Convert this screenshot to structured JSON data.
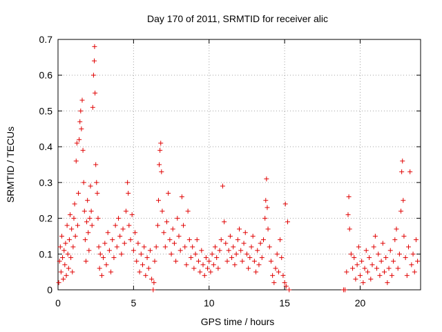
{
  "chart_data": {
    "type": "scatter",
    "title": "Day 170 of 2011, SRMTID for receiver alic",
    "xlabel": "GPS time / hours",
    "ylabel": "SRMTID / TECUs",
    "xlim": [
      0,
      24
    ],
    "ylim": [
      0,
      0.7
    ],
    "xticks": [
      0,
      5,
      10,
      15,
      20
    ],
    "yticks": [
      0,
      0.1,
      0.2,
      0.3,
      0.4,
      0.5,
      0.6,
      0.7
    ],
    "grid": true,
    "marker": "+",
    "color": "#e00000",
    "series": [
      {
        "name": "SRMTID",
        "points": [
          [
            0.05,
            0.02
          ],
          [
            0.1,
            0.08
          ],
          [
            0.15,
            0.12
          ],
          [
            0.2,
            0.05
          ],
          [
            0.25,
            0.15
          ],
          [
            0.3,
            0.09
          ],
          [
            0.35,
            0.03
          ],
          [
            0.4,
            0.11
          ],
          [
            0.45,
            0.07
          ],
          [
            0.5,
            0.13
          ],
          [
            0.55,
            0.04
          ],
          [
            0.6,
            0.18
          ],
          [
            0.65,
            0.1
          ],
          [
            0.7,
            0.06
          ],
          [
            0.75,
            0.14
          ],
          [
            0.8,
            0.21
          ],
          [
            0.85,
            0.09
          ],
          [
            0.9,
            0.17
          ],
          [
            0.95,
            0.05
          ],
          [
            1.0,
            0.12
          ],
          [
            1.05,
            0.2
          ],
          [
            1.1,
            0.24
          ],
          [
            1.15,
            0.15
          ],
          [
            1.2,
            0.36
          ],
          [
            1.25,
            0.41
          ],
          [
            1.3,
            0.18
          ],
          [
            1.35,
            0.27
          ],
          [
            1.4,
            0.42
          ],
          [
            1.45,
            0.47
          ],
          [
            1.5,
            0.5
          ],
          [
            1.55,
            0.45
          ],
          [
            1.6,
            0.53
          ],
          [
            1.65,
            0.39
          ],
          [
            1.7,
            0.3
          ],
          [
            1.75,
            0.22
          ],
          [
            1.8,
            0.14
          ],
          [
            1.85,
            0.08
          ],
          [
            1.9,
            0.19
          ],
          [
            1.95,
            0.25
          ],
          [
            2.0,
            0.16
          ],
          [
            2.05,
            0.11
          ],
          [
            2.1,
            0.2
          ],
          [
            2.15,
            0.29
          ],
          [
            2.2,
            0.22
          ],
          [
            2.25,
            0.18
          ],
          [
            2.3,
            0.51
          ],
          [
            2.35,
            0.6
          ],
          [
            2.4,
            0.64
          ],
          [
            2.42,
            0.68
          ],
          [
            2.45,
            0.55
          ],
          [
            2.5,
            0.35
          ],
          [
            2.55,
            0.3
          ],
          [
            2.6,
            0.27
          ],
          [
            2.65,
            0.2
          ],
          [
            2.7,
            0.12
          ],
          [
            2.75,
            0.06
          ],
          [
            2.8,
            0.1
          ],
          [
            2.9,
            0.04
          ],
          [
            3.0,
            0.09
          ],
          [
            3.1,
            0.13
          ],
          [
            3.2,
            0.07
          ],
          [
            3.3,
            0.16
          ],
          [
            3.4,
            0.11
          ],
          [
            3.5,
            0.05
          ],
          [
            3.6,
            0.14
          ],
          [
            3.7,
            0.09
          ],
          [
            3.8,
            0.18
          ],
          [
            3.9,
            0.12
          ],
          [
            4.0,
            0.2
          ],
          [
            4.1,
            0.15
          ],
          [
            4.2,
            0.1
          ],
          [
            4.3,
            0.17
          ],
          [
            4.4,
            0.13
          ],
          [
            4.5,
            0.22
          ],
          [
            4.6,
            0.3
          ],
          [
            4.65,
            0.27
          ],
          [
            4.7,
            0.18
          ],
          [
            4.8,
            0.14
          ],
          [
            4.9,
            0.21
          ],
          [
            5.0,
            0.11
          ],
          [
            5.1,
            0.16
          ],
          [
            5.2,
            0.08
          ],
          [
            5.3,
            0.13
          ],
          [
            5.4,
            0.05
          ],
          [
            5.5,
            0.1
          ],
          [
            5.6,
            0.07
          ],
          [
            5.7,
            0.12
          ],
          [
            5.8,
            0.04
          ],
          [
            5.9,
            0.09
          ],
          [
            6.0,
            0.06
          ],
          [
            6.1,
            0.11
          ],
          [
            6.2,
            0.03
          ],
          [
            6.3,
            0.0
          ],
          [
            6.35,
            0.02
          ],
          [
            6.4,
            0.08
          ],
          [
            6.5,
            0.12
          ],
          [
            6.6,
            0.18
          ],
          [
            6.65,
            0.25
          ],
          [
            6.7,
            0.35
          ],
          [
            6.75,
            0.39
          ],
          [
            6.8,
            0.41
          ],
          [
            6.85,
            0.33
          ],
          [
            6.9,
            0.22
          ],
          [
            7.0,
            0.16
          ],
          [
            7.1,
            0.12
          ],
          [
            7.2,
            0.19
          ],
          [
            7.3,
            0.27
          ],
          [
            7.4,
            0.14
          ],
          [
            7.5,
            0.1
          ],
          [
            7.6,
            0.17
          ],
          [
            7.7,
            0.13
          ],
          [
            7.8,
            0.08
          ],
          [
            7.9,
            0.2
          ],
          [
            8.0,
            0.15
          ],
          [
            8.1,
            0.11
          ],
          [
            8.2,
            0.26
          ],
          [
            8.3,
            0.18
          ],
          [
            8.4,
            0.12
          ],
          [
            8.5,
            0.07
          ],
          [
            8.6,
            0.22
          ],
          [
            8.7,
            0.14
          ],
          [
            8.8,
            0.09
          ],
          [
            8.9,
            0.12
          ],
          [
            9.0,
            0.06
          ],
          [
            9.1,
            0.1
          ],
          [
            9.2,
            0.14
          ],
          [
            9.3,
            0.08
          ],
          [
            9.4,
            0.05
          ],
          [
            9.5,
            0.11
          ],
          [
            9.6,
            0.07
          ],
          [
            9.7,
            0.04
          ],
          [
            9.8,
            0.09
          ],
          [
            9.9,
            0.06
          ],
          [
            10.0,
            0.08
          ],
          [
            10.1,
            0.05
          ],
          [
            10.2,
            0.1
          ],
          [
            10.3,
            0.07
          ],
          [
            10.4,
            0.12
          ],
          [
            10.5,
            0.09
          ],
          [
            10.6,
            0.06
          ],
          [
            10.7,
            0.11
          ],
          [
            10.8,
            0.14
          ],
          [
            10.9,
            0.29
          ],
          [
            11.0,
            0.19
          ],
          [
            11.1,
            0.13
          ],
          [
            11.2,
            0.08
          ],
          [
            11.3,
            0.11
          ],
          [
            11.4,
            0.15
          ],
          [
            11.5,
            0.09
          ],
          [
            11.6,
            0.12
          ],
          [
            11.7,
            0.07
          ],
          [
            11.8,
            0.1
          ],
          [
            11.9,
            0.14
          ],
          [
            12.0,
            0.17
          ],
          [
            12.1,
            0.11
          ],
          [
            12.2,
            0.08
          ],
          [
            12.3,
            0.13
          ],
          [
            12.4,
            0.16
          ],
          [
            12.5,
            0.1
          ],
          [
            12.6,
            0.06
          ],
          [
            12.7,
            0.09
          ],
          [
            12.8,
            0.12
          ],
          [
            12.9,
            0.15
          ],
          [
            13.0,
            0.08
          ],
          [
            13.1,
            0.05
          ],
          [
            13.2,
            0.11
          ],
          [
            13.3,
            0.07
          ],
          [
            13.4,
            0.13
          ],
          [
            13.5,
            0.09
          ],
          [
            13.6,
            0.14
          ],
          [
            13.7,
            0.2
          ],
          [
            13.75,
            0.25
          ],
          [
            13.8,
            0.31
          ],
          [
            13.85,
            0.23
          ],
          [
            13.9,
            0.17
          ],
          [
            14.0,
            0.12
          ],
          [
            14.1,
            0.08
          ],
          [
            14.2,
            0.04
          ],
          [
            14.3,
            0.02
          ],
          [
            14.4,
            0.06
          ],
          [
            14.5,
            0.1
          ],
          [
            14.6,
            0.05
          ],
          [
            14.7,
            0.14
          ],
          [
            14.8,
            0.09
          ],
          [
            14.9,
            0.04
          ],
          [
            15.0,
            0.02
          ],
          [
            15.05,
            0.24
          ],
          [
            15.1,
            0.01
          ],
          [
            15.2,
            0.19
          ],
          [
            15.3,
            0.0
          ],
          [
            18.9,
            0.0
          ],
          [
            19.0,
            0.0
          ],
          [
            19.1,
            0.05
          ],
          [
            19.2,
            0.21
          ],
          [
            19.25,
            0.26
          ],
          [
            19.3,
            0.17
          ],
          [
            19.4,
            0.1
          ],
          [
            19.5,
            0.06
          ],
          [
            19.6,
            0.09
          ],
          [
            19.7,
            0.03
          ],
          [
            19.8,
            0.07
          ],
          [
            19.9,
            0.12
          ],
          [
            20.0,
            0.04
          ],
          [
            20.1,
            0.08
          ],
          [
            20.2,
            0.02
          ],
          [
            20.3,
            0.06
          ],
          [
            20.4,
            0.11
          ],
          [
            20.5,
            0.05
          ],
          [
            20.6,
            0.09
          ],
          [
            20.7,
            0.03
          ],
          [
            20.8,
            0.07
          ],
          [
            20.9,
            0.12
          ],
          [
            21.0,
            0.15
          ],
          [
            21.1,
            0.06
          ],
          [
            21.2,
            0.1
          ],
          [
            21.3,
            0.04
          ],
          [
            21.4,
            0.08
          ],
          [
            21.5,
            0.13
          ],
          [
            21.6,
            0.05
          ],
          [
            21.7,
            0.09
          ],
          [
            21.8,
            0.02
          ],
          [
            21.9,
            0.06
          ],
          [
            22.0,
            0.11
          ],
          [
            22.1,
            0.04
          ],
          [
            22.2,
            0.08
          ],
          [
            22.3,
            0.14
          ],
          [
            22.4,
            0.17
          ],
          [
            22.5,
            0.06
          ],
          [
            22.6,
            0.1
          ],
          [
            22.7,
            0.22
          ],
          [
            22.75,
            0.33
          ],
          [
            22.8,
            0.36
          ],
          [
            22.85,
            0.25
          ],
          [
            22.9,
            0.15
          ],
          [
            23.0,
            0.09
          ],
          [
            23.1,
            0.04
          ],
          [
            23.2,
            0.12
          ],
          [
            23.3,
            0.33
          ],
          [
            23.4,
            0.07
          ],
          [
            23.5,
            0.1
          ],
          [
            23.6,
            0.05
          ],
          [
            23.7,
            0.14
          ],
          [
            23.8,
            0.08
          ]
        ]
      }
    ]
  }
}
